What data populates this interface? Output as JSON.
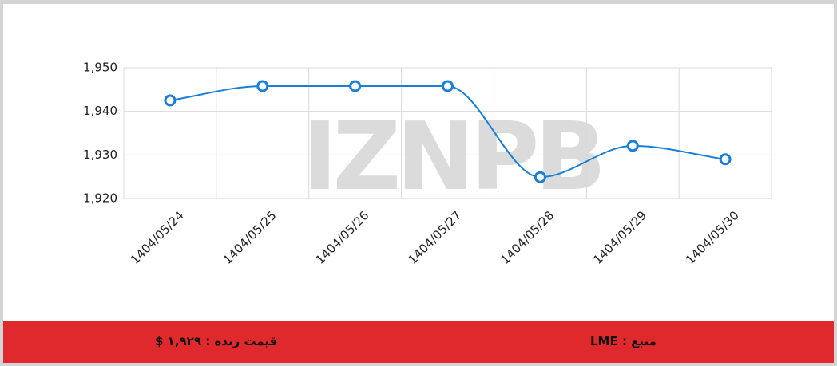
{
  "chart_data": {
    "type": "line",
    "watermark": "IZNPB",
    "categories": [
      "1404/05/24",
      "1404/05/25",
      "1404/05/26",
      "1404/05/27",
      "1404/05/28",
      "1404/05/29",
      "1404/05/30"
    ],
    "series": [
      {
        "color": "#1a7fd6",
        "values": [
          1942.5,
          1945.8,
          1945.8,
          1945.8,
          1924.9,
          1932.1,
          1929
        ]
      }
    ],
    "ylim": [
      1920,
      1950
    ],
    "yticks": [
      {
        "value": 1920,
        "label": "1,920"
      },
      {
        "value": 1930,
        "label": "1,930"
      },
      {
        "value": 1940,
        "label": "1,940"
      },
      {
        "value": 1950,
        "label": "1,950"
      }
    ],
    "grid": true
  },
  "footer": {
    "live_price": "قیمت زنده : ۱,۹۲۹ $",
    "source": "منبع : LME"
  }
}
